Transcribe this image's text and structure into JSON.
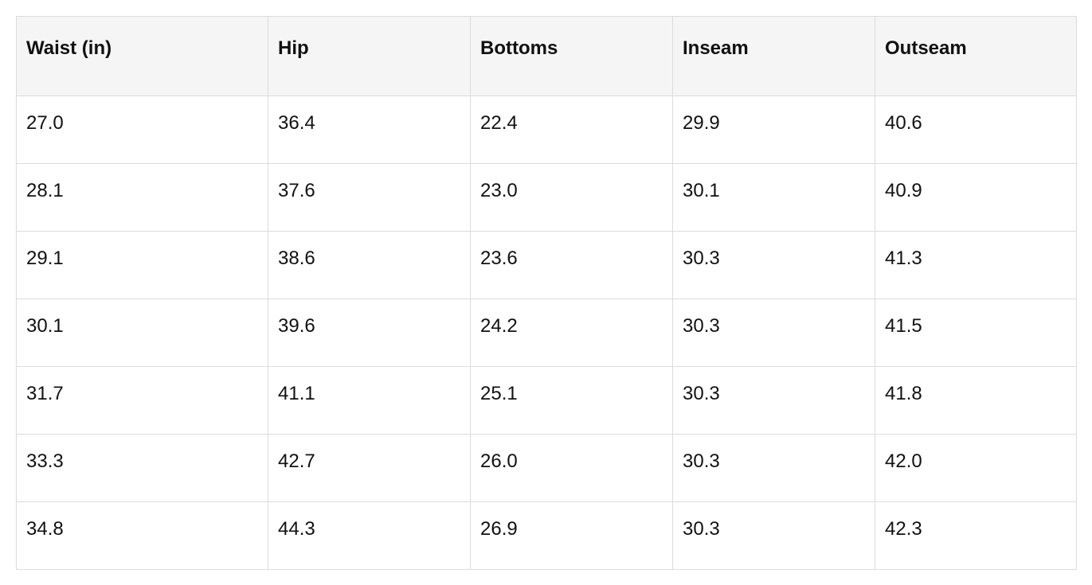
{
  "table": {
    "header": [
      "Waist (in)",
      "Hip",
      "Bottoms",
      "Inseam",
      "Outseam"
    ],
    "rows": [
      [
        "27.0",
        "36.4",
        "22.4",
        "29.9",
        "40.6"
      ],
      [
        "28.1",
        "37.6",
        "23.0",
        "30.1",
        "40.9"
      ],
      [
        "29.1",
        "38.6",
        "23.6",
        "30.3",
        "41.3"
      ],
      [
        "30.1",
        "39.6",
        "24.2",
        "30.3",
        "41.5"
      ],
      [
        "31.7",
        "41.1",
        "25.1",
        "30.3",
        "41.8"
      ],
      [
        "33.3",
        "42.7",
        "26.0",
        "30.3",
        "42.0"
      ],
      [
        "34.8",
        "44.3",
        "26.9",
        "30.3",
        "42.3"
      ]
    ]
  }
}
